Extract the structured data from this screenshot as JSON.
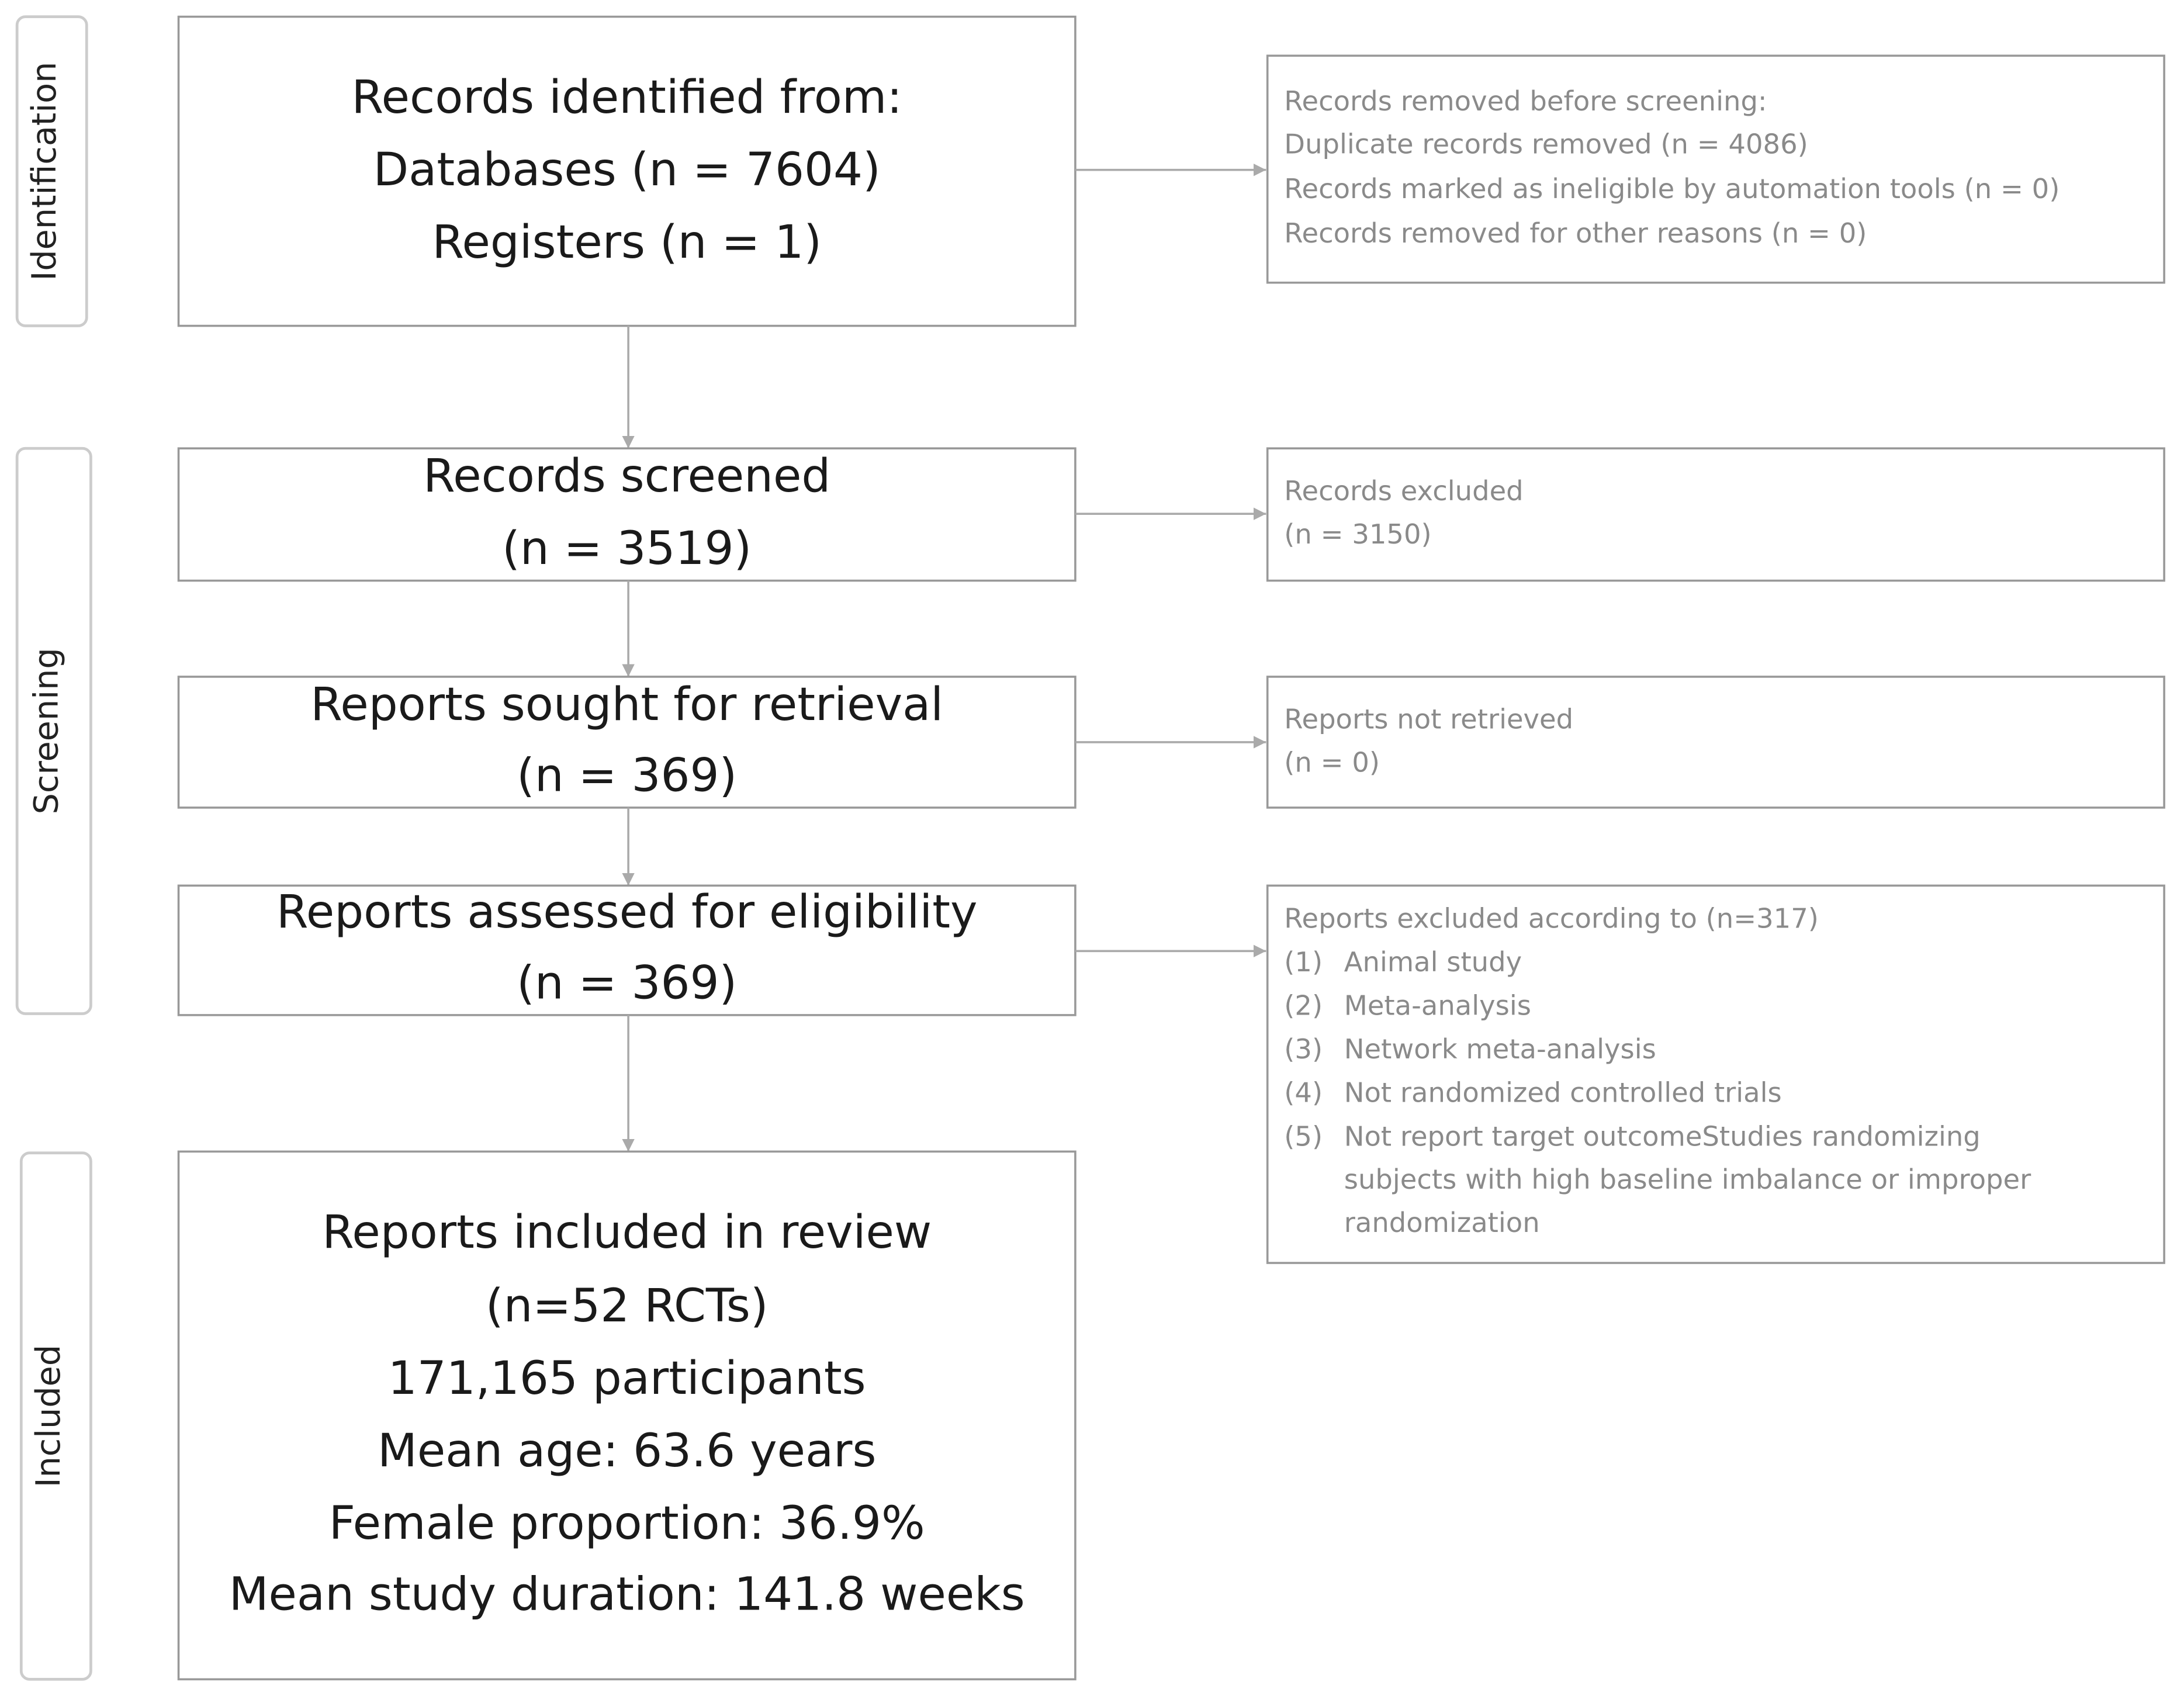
{
  "phases": [
    "Identification",
    "Screening",
    "Included"
  ],
  "boxes": [
    {
      "lines": [
        "Records identified from:",
        "Databases (n = 7604)",
        "Registers (n = 1)"
      ]
    },
    {
      "lines": [
        "Records screened",
        "(n = 3519)"
      ]
    },
    {
      "lines": [
        "Reports sought for retrieval",
        "(n = 369)"
      ]
    },
    {
      "lines": [
        "Reports assessed for eligibility",
        "(n = 369)"
      ]
    },
    {
      "lines": [
        "Reports included in review",
        "(n=52 RCTs)",
        "171,165 participants",
        "Mean age: 63.6 years",
        "Female proportion: 36.9%",
        "Mean study duration: 141.8 weeks"
      ]
    }
  ],
  "side_boxes": [
    {
      "lines": [
        "Records removed before screening:",
        "Duplicate records removed  (n = 4086)",
        "Records marked as ineligible by automation tools (n = 0)",
        "Records removed for other reasons (n = 0)"
      ]
    },
    {
      "lines": [
        "Records excluded",
        "(n = 3150)"
      ]
    },
    {
      "lines": [
        "Reports not retrieved",
        "(n = 0)"
      ]
    },
    {
      "title": "Reports excluded according to (n=317)",
      "items": [
        {
          "number": "(1)",
          "lines": [
            "Animal study"
          ]
        },
        {
          "number": "(2)",
          "lines": [
            "Meta-analysis"
          ]
        },
        {
          "number": "(3)",
          "lines": [
            "Network meta-analysis"
          ]
        },
        {
          "number": "(4)",
          "lines": [
            "Not randomized controlled trials"
          ]
        },
        {
          "number": "(5)",
          "lines": [
            "Not report target outcomeStudies randomizing",
            "subjects with high baseline imbalance or improper",
            "randomization"
          ]
        }
      ]
    }
  ]
}
